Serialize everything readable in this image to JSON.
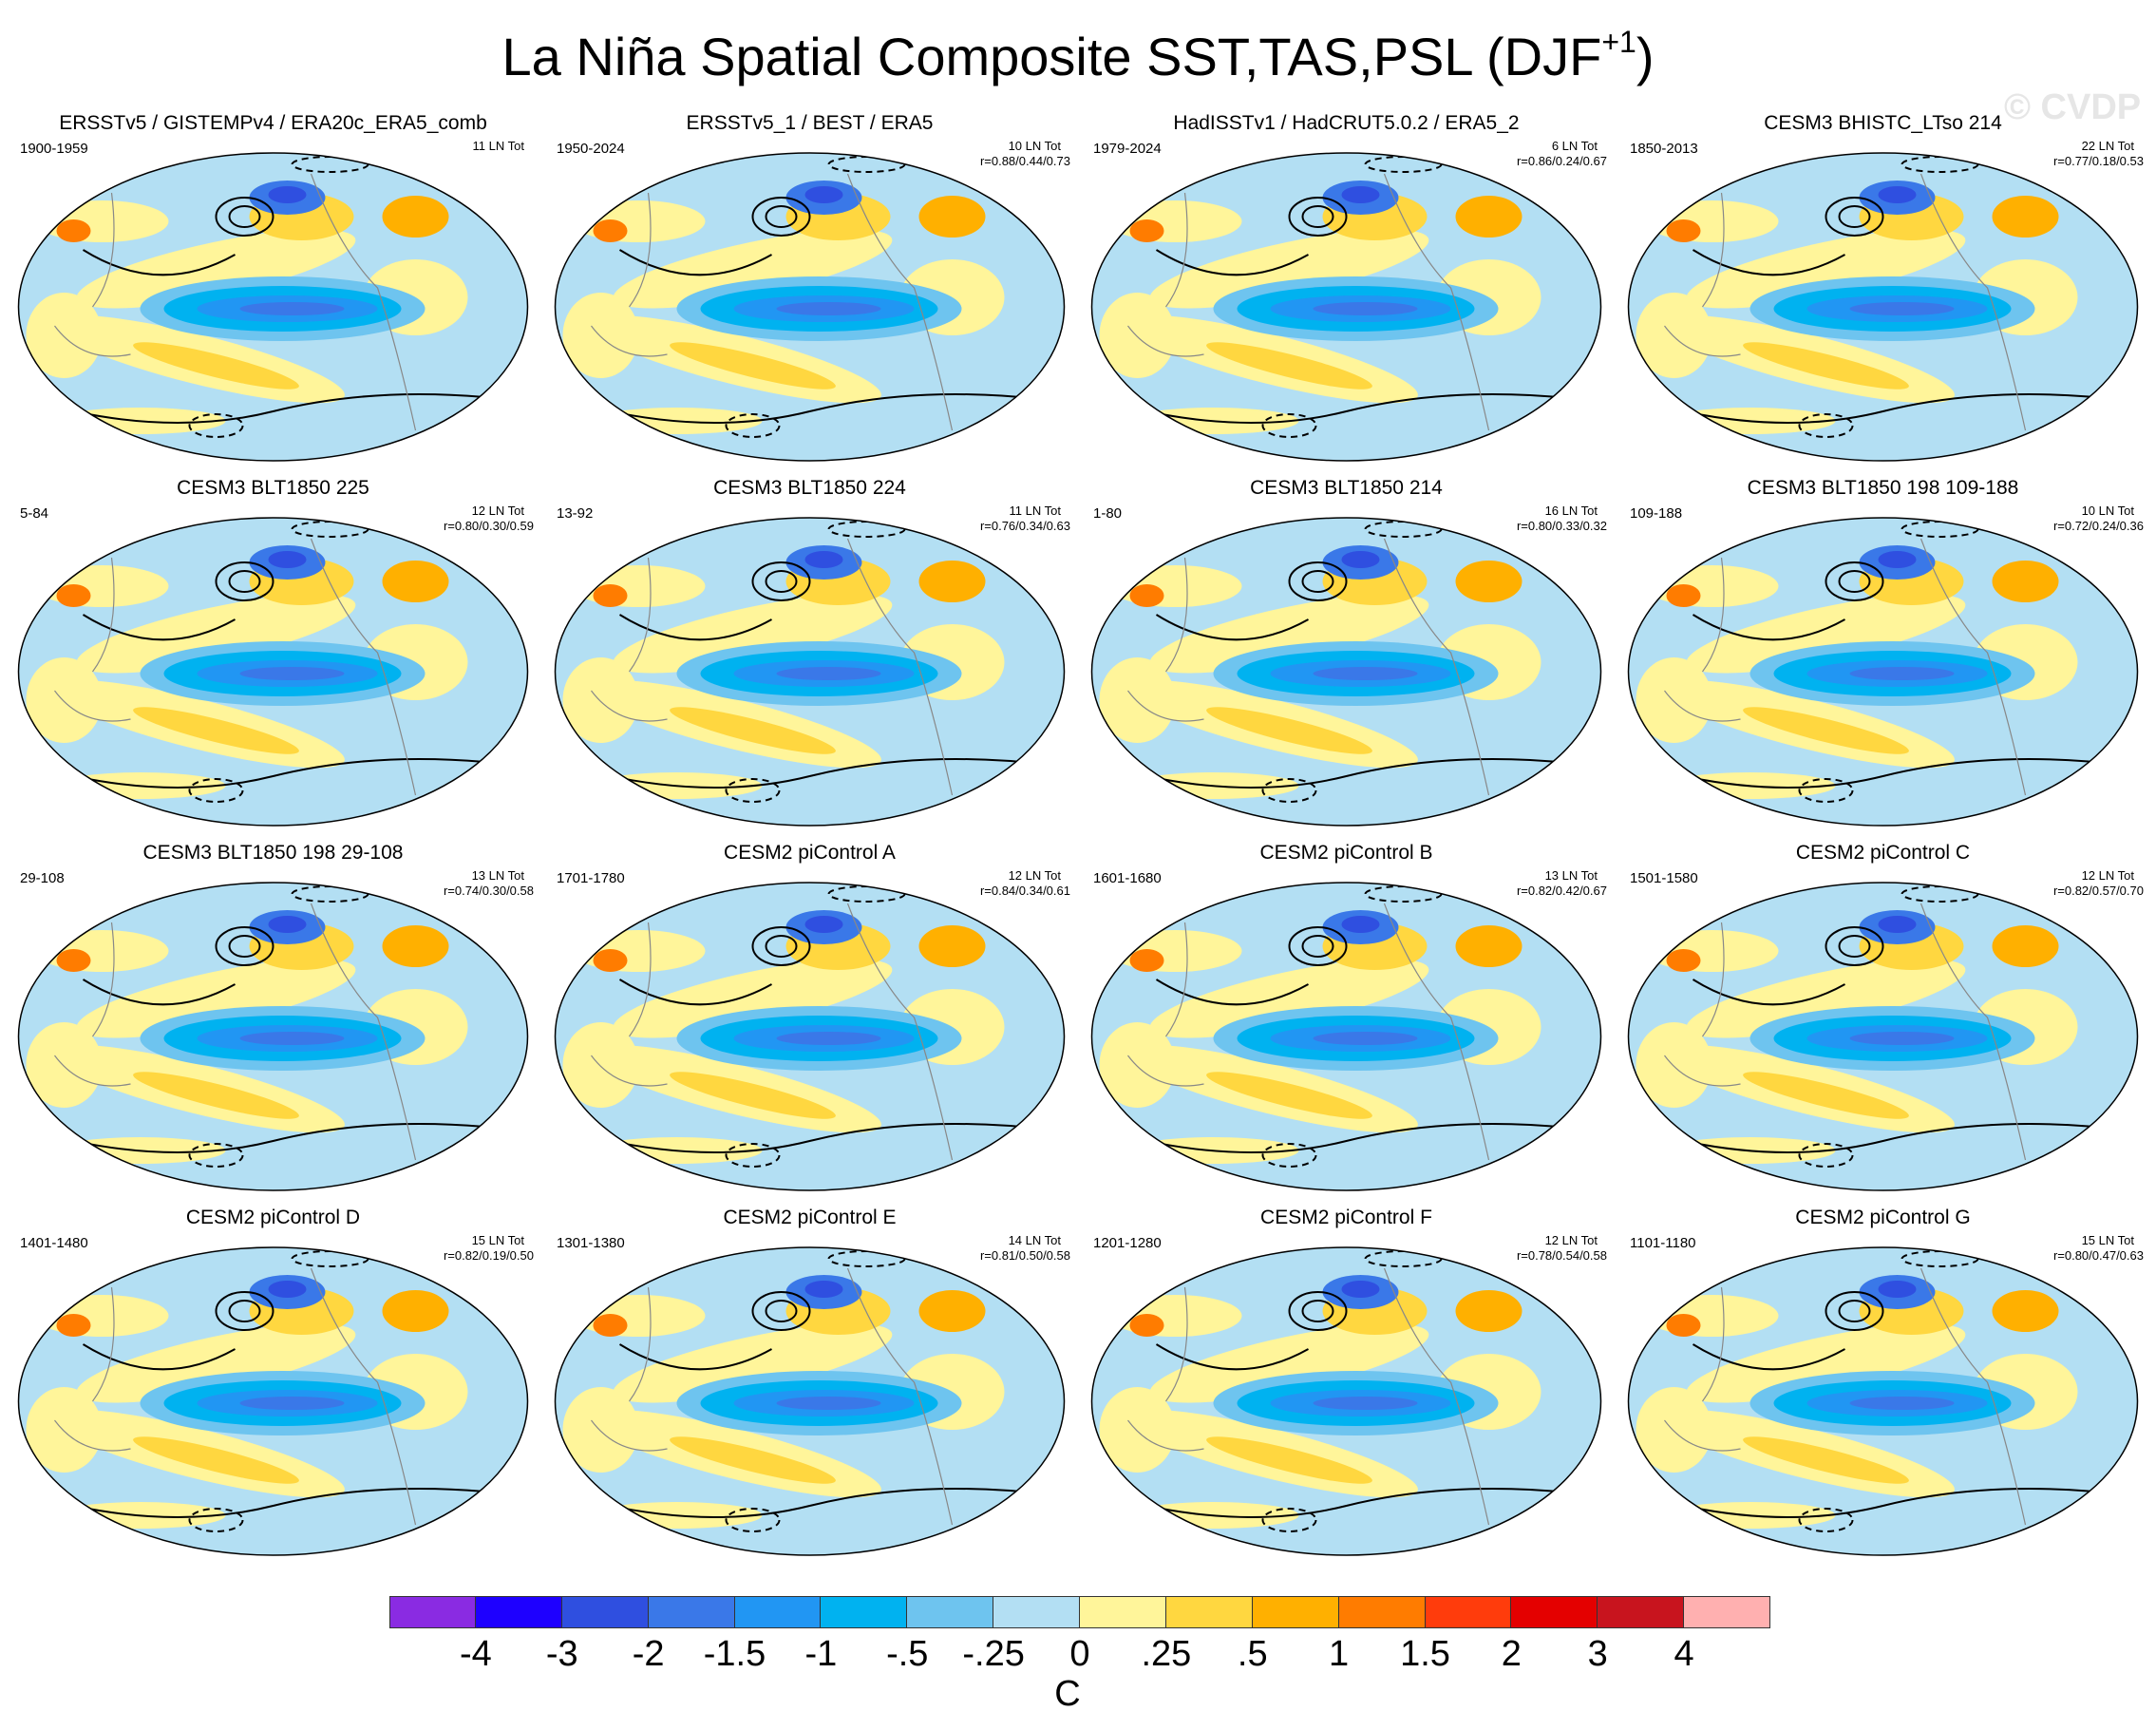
{
  "figure": {
    "title_main": "La Niña Spatial Composite SST,TAS,PSL (DJF",
    "title_sup": "+1",
    "title_end": ")",
    "watermark": "© CVDP"
  },
  "chart_data": {
    "type": "heatmap",
    "variables": [
      "SST",
      "TAS",
      "PSL"
    ],
    "season": "DJF+1",
    "units": "C",
    "colorbar": {
      "tick_labels": [
        "-4",
        "-3",
        "-2",
        "-1.5",
        "-1",
        "-.5",
        "-.25",
        "0",
        ".25",
        ".5",
        "1",
        "1.5",
        "2",
        "3",
        "4"
      ],
      "colors": [
        "#8a2be2",
        "#1e00ff",
        "#2f4fe0",
        "#3a78e8",
        "#2196f3",
        "#00b2f0",
        "#6ec4ef",
        "#b3dff3",
        "#fff59a",
        "#ffd740",
        "#ffb000",
        "#ff7c00",
        "#ff3c0c",
        "#e40000",
        "#c8141e",
        "#ffb0b0"
      ],
      "unit_label": "C"
    },
    "panels": [
      {
        "title": "ERSSTv5 / GISTEMPv4 / ERA20c_ERA5_comb",
        "period": "1900-1959",
        "count": "11 LN Tot",
        "corr": ""
      },
      {
        "title": "ERSSTv5_1 / BEST / ERA5",
        "period": "1950-2024",
        "count": "10 LN Tot",
        "corr": "r=0.88/0.44/0.73"
      },
      {
        "title": "HadISSTv1 / HadCRUT5.0.2 / ERA5_2",
        "period": "1979-2024",
        "count": "6 LN Tot",
        "corr": "r=0.86/0.24/0.67"
      },
      {
        "title": "CESM3 BHISTC_LTso 214",
        "period": "1850-2013",
        "count": "22 LN Tot",
        "corr": "r=0.77/0.18/0.53"
      },
      {
        "title": "CESM3 BLT1850 225",
        "period": "5-84",
        "count": "12 LN Tot",
        "corr": "r=0.80/0.30/0.59"
      },
      {
        "title": "CESM3 BLT1850 224",
        "period": "13-92",
        "count": "11 LN Tot",
        "corr": "r=0.76/0.34/0.63"
      },
      {
        "title": "CESM3 BLT1850 214",
        "period": "1-80",
        "count": "16 LN Tot",
        "corr": "r=0.80/0.33/0.32"
      },
      {
        "title": "CESM3 BLT1850 198 109-188",
        "period": "109-188",
        "count": "10 LN Tot",
        "corr": "r=0.72/0.24/0.36"
      },
      {
        "title": "CESM3 BLT1850 198 29-108",
        "period": "29-108",
        "count": "13 LN Tot",
        "corr": "r=0.74/0.30/0.58"
      },
      {
        "title": "CESM2 piControl A",
        "period": "1701-1780",
        "count": "12 LN Tot",
        "corr": "r=0.84/0.34/0.61"
      },
      {
        "title": "CESM2 piControl B",
        "period": "1601-1680",
        "count": "13 LN Tot",
        "corr": "r=0.82/0.42/0.67"
      },
      {
        "title": "CESM2 piControl C",
        "period": "1501-1580",
        "count": "12 LN Tot",
        "corr": "r=0.82/0.57/0.70"
      },
      {
        "title": "CESM2 piControl D",
        "period": "1401-1480",
        "count": "15 LN Tot",
        "corr": "r=0.82/0.19/0.50"
      },
      {
        "title": "CESM2 piControl E",
        "period": "1301-1380",
        "count": "14 LN Tot",
        "corr": "r=0.81/0.50/0.58"
      },
      {
        "title": "CESM2 piControl F",
        "period": "1201-1280",
        "count": "12 LN Tot",
        "corr": "r=0.78/0.54/0.58"
      },
      {
        "title": "CESM2 piControl G",
        "period": "1101-1180",
        "count": "15 LN Tot",
        "corr": "r=0.80/0.47/0.63"
      }
    ]
  }
}
